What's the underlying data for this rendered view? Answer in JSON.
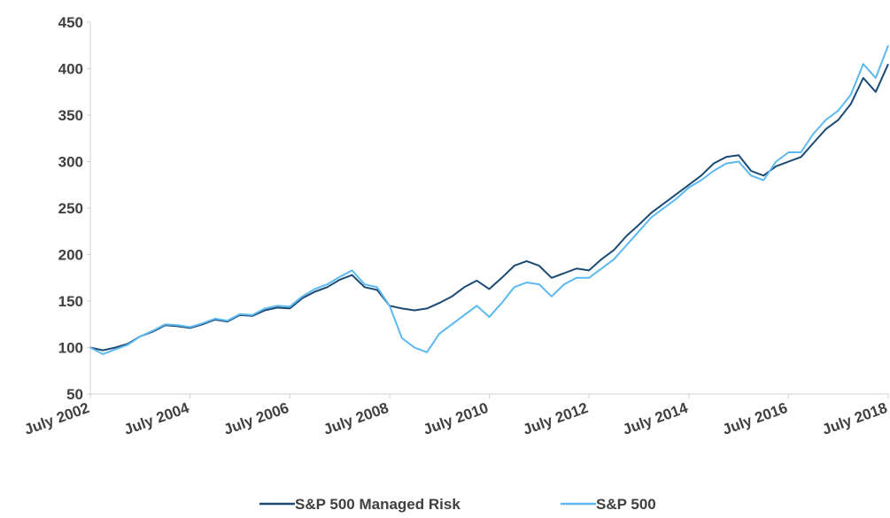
{
  "chart_data": {
    "type": "line",
    "x": [
      "2002-07",
      "2002-10",
      "2003-01",
      "2003-04",
      "2003-07",
      "2003-10",
      "2004-01",
      "2004-04",
      "2004-07",
      "2004-10",
      "2005-01",
      "2005-04",
      "2005-07",
      "2005-10",
      "2006-01",
      "2006-04",
      "2006-07",
      "2006-10",
      "2007-01",
      "2007-04",
      "2007-07",
      "2007-10",
      "2008-01",
      "2008-04",
      "2008-07",
      "2008-10",
      "2009-01",
      "2009-04",
      "2009-07",
      "2009-10",
      "2010-01",
      "2010-04",
      "2010-07",
      "2010-10",
      "2011-01",
      "2011-04",
      "2011-07",
      "2011-10",
      "2012-01",
      "2012-04",
      "2012-07",
      "2012-10",
      "2013-01",
      "2013-04",
      "2013-07",
      "2013-10",
      "2014-01",
      "2014-04",
      "2014-07",
      "2014-10",
      "2015-01",
      "2015-04",
      "2015-07",
      "2015-10",
      "2016-01",
      "2016-04",
      "2016-07",
      "2016-10",
      "2017-01",
      "2017-04",
      "2017-07",
      "2017-10",
      "2018-01",
      "2018-04",
      "2018-07"
    ],
    "series": [
      {
        "name": "S&P 500 Managed Risk",
        "color": "#1b4a73",
        "values": [
          100,
          97,
          100,
          104,
          112,
          117,
          124,
          123,
          121,
          125,
          130,
          128,
          135,
          134,
          140,
          143,
          142,
          153,
          160,
          165,
          173,
          178,
          165,
          162,
          145,
          142,
          140,
          142,
          148,
          155,
          165,
          172,
          163,
          175,
          188,
          193,
          188,
          175,
          180,
          185,
          183,
          195,
          205,
          220,
          232,
          245,
          255,
          265,
          275,
          285,
          298,
          305,
          307,
          290,
          285,
          295,
          300,
          305,
          320,
          335,
          345,
          362,
          390,
          375,
          405
        ]
      },
      {
        "name": "S&P 500",
        "color": "#5cb8f0",
        "values": [
          100,
          93,
          98,
          103,
          112,
          118,
          125,
          124,
          122,
          126,
          131,
          129,
          136,
          135,
          142,
          145,
          144,
          155,
          163,
          168,
          176,
          183,
          168,
          165,
          145,
          110,
          100,
          95,
          115,
          125,
          135,
          145,
          133,
          148,
          165,
          170,
          168,
          155,
          168,
          175,
          175,
          185,
          195,
          210,
          225,
          240,
          250,
          260,
          272,
          280,
          290,
          298,
          300,
          285,
          280,
          300,
          310,
          310,
          330,
          345,
          355,
          372,
          405,
          390,
          425
        ]
      }
    ],
    "ylim": [
      50,
      450
    ],
    "yticks": [
      50,
      100,
      150,
      200,
      250,
      300,
      350,
      400,
      450
    ],
    "xlim": [
      "2002-07",
      "2018-07"
    ],
    "xticks": [
      {
        "value": "2002-07",
        "label": "July 2002"
      },
      {
        "value": "2004-07",
        "label": "July 2004"
      },
      {
        "value": "2006-07",
        "label": "July 2006"
      },
      {
        "value": "2008-07",
        "label": "July 2008"
      },
      {
        "value": "2010-07",
        "label": "July 2010"
      },
      {
        "value": "2012-07",
        "label": "July 2012"
      },
      {
        "value": "2014-07",
        "label": "July 2014"
      },
      {
        "value": "2016-07",
        "label": "July 2016"
      },
      {
        "value": "2018-07",
        "label": "July 2018"
      }
    ],
    "grid": false,
    "legend": "bottom"
  }
}
